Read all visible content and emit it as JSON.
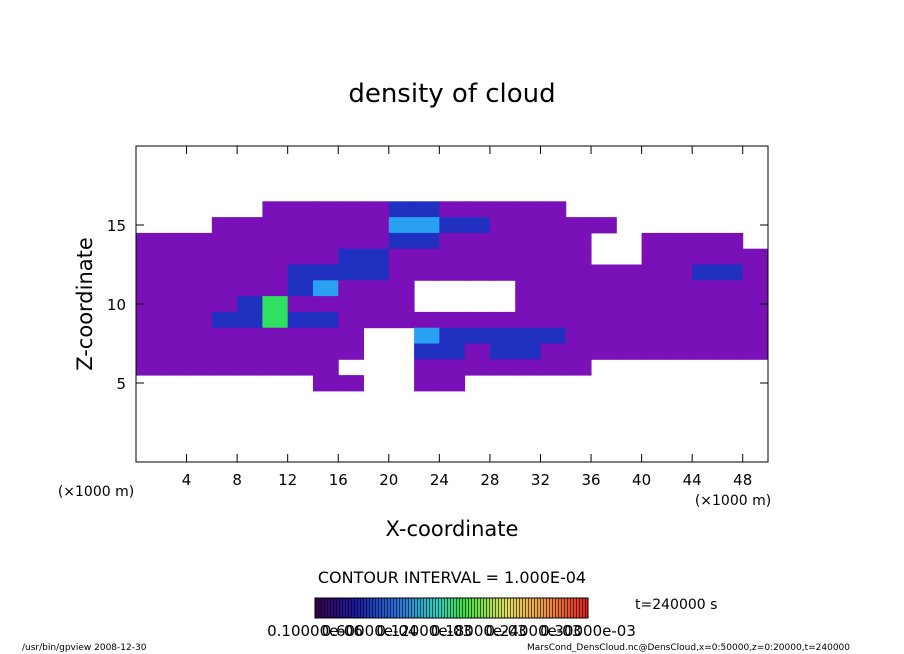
{
  "chart_data": {
    "type": "contour",
    "title": "density of cloud",
    "x_label": "X-coordinate",
    "y_label": "Z-coordinate",
    "x_unit": "(×1000 m)",
    "y_unit": "(×1000 m)",
    "xlim": [
      0,
      50
    ],
    "ylim": [
      0,
      20
    ],
    "xticks": [
      4,
      8,
      12,
      16,
      20,
      24,
      28,
      32,
      36,
      40,
      44,
      48
    ],
    "yticks": [
      5,
      10,
      15
    ],
    "x": [
      1,
      3,
      5,
      7,
      9,
      11,
      13,
      15,
      17,
      19,
      21,
      23,
      25,
      27,
      29,
      31,
      33,
      35,
      37,
      39,
      41,
      43,
      45,
      47,
      49
    ],
    "z": [
      16,
      15,
      14,
      13,
      12,
      11,
      10,
      9,
      8,
      7,
      6,
      5
    ],
    "values": [
      [
        null,
        null,
        null,
        null,
        null,
        1e-05,
        1e-05,
        1e-05,
        1e-05,
        1e-05,
        4e-05,
        4e-05,
        1e-05,
        1e-05,
        1e-05,
        1e-05,
        1e-05,
        null,
        null,
        null,
        null,
        null,
        null,
        null,
        null
      ],
      [
        null,
        null,
        null,
        1e-05,
        1e-05,
        1e-05,
        1e-05,
        1e-05,
        1e-05,
        1e-05,
        8e-05,
        8e-05,
        4e-05,
        4e-05,
        1e-05,
        1e-05,
        1e-05,
        1e-05,
        1e-05,
        null,
        null,
        null,
        null,
        null,
        null
      ],
      [
        1e-05,
        1e-05,
        1e-05,
        1e-05,
        1e-05,
        1e-05,
        1e-05,
        1e-05,
        1e-05,
        1e-05,
        4e-05,
        4e-05,
        1e-05,
        1e-05,
        1e-05,
        1e-05,
        1e-05,
        1e-05,
        null,
        null,
        1e-05,
        1e-05,
        1e-05,
        1e-05,
        null
      ],
      [
        1e-05,
        1e-05,
        1e-05,
        1e-05,
        1e-05,
        1e-05,
        1e-05,
        1e-05,
        4e-05,
        4e-05,
        1e-05,
        1e-05,
        1e-05,
        1e-05,
        1e-05,
        1e-05,
        1e-05,
        1e-05,
        null,
        null,
        1e-05,
        1e-05,
        1e-05,
        1e-05,
        1e-05
      ],
      [
        1e-05,
        1e-05,
        1e-05,
        1e-05,
        1e-05,
        1e-05,
        4e-05,
        4e-05,
        4e-05,
        4e-05,
        1e-05,
        1e-05,
        1e-05,
        1e-05,
        1e-05,
        1e-05,
        1e-05,
        1e-05,
        1e-05,
        1e-05,
        1e-05,
        1e-05,
        4e-05,
        4e-05,
        1e-05
      ],
      [
        1e-05,
        1e-05,
        1e-05,
        1e-05,
        1e-05,
        1e-05,
        4e-05,
        8e-05,
        1e-05,
        1e-05,
        1e-05,
        null,
        null,
        null,
        null,
        1e-05,
        1e-05,
        1e-05,
        1e-05,
        1e-05,
        1e-05,
        1e-05,
        1e-05,
        1e-05,
        1e-05
      ],
      [
        1e-05,
        1e-05,
        1e-05,
        1e-05,
        4e-05,
        0.00012,
        1e-05,
        1e-05,
        1e-05,
        1e-05,
        1e-05,
        null,
        null,
        null,
        null,
        1e-05,
        1e-05,
        1e-05,
        1e-05,
        1e-05,
        1e-05,
        1e-05,
        1e-05,
        1e-05,
        1e-05
      ],
      [
        1e-05,
        1e-05,
        1e-05,
        4e-05,
        4e-05,
        0.00012,
        4e-05,
        4e-05,
        1e-05,
        1e-05,
        1e-05,
        1e-05,
        1e-05,
        1e-05,
        1e-05,
        1e-05,
        1e-05,
        1e-05,
        1e-05,
        1e-05,
        1e-05,
        1e-05,
        1e-05,
        1e-05,
        1e-05
      ],
      [
        1e-05,
        1e-05,
        1e-05,
        1e-05,
        1e-05,
        1e-05,
        1e-05,
        1e-05,
        1e-05,
        null,
        null,
        8e-05,
        4e-05,
        4e-05,
        4e-05,
        4e-05,
        4e-05,
        1e-05,
        1e-05,
        1e-05,
        1e-05,
        1e-05,
        1e-05,
        1e-05,
        1e-05
      ],
      [
        1e-05,
        1e-05,
        1e-05,
        1e-05,
        1e-05,
        1e-05,
        1e-05,
        1e-05,
        1e-05,
        null,
        null,
        4e-05,
        4e-05,
        1e-05,
        4e-05,
        4e-05,
        1e-05,
        1e-05,
        1e-05,
        1e-05,
        1e-05,
        1e-05,
        1e-05,
        1e-05,
        1e-05
      ],
      [
        1e-05,
        1e-05,
        1e-05,
        1e-05,
        1e-05,
        1e-05,
        1e-05,
        1e-05,
        null,
        null,
        null,
        1e-05,
        1e-05,
        1e-05,
        1e-05,
        1e-05,
        1e-05,
        1e-05,
        null,
        null,
        null,
        null,
        null,
        null,
        null
      ],
      [
        null,
        null,
        null,
        null,
        null,
        null,
        null,
        1e-05,
        1e-05,
        null,
        null,
        1e-05,
        1e-05,
        null,
        null,
        null,
        null,
        null,
        null,
        null,
        null,
        null,
        null,
        null,
        null
      ]
    ],
    "contour_interval": "CONTOUR INTERVAL = 1.000E-04",
    "time_label": "t=240000 s",
    "colorbar_labels": [
      "0.10000e-06",
      "0.60000e-04",
      "0.12000e-03",
      "0.18000e-03",
      "0.24000e-03",
      "0.30000e-03"
    ],
    "footer_left": "/usr/bin/gpview   2008-12-30",
    "footer_right": "MarsCond_DensCloud.nc@DensCloud,x=0:50000,z=0:20000,t=240000"
  }
}
